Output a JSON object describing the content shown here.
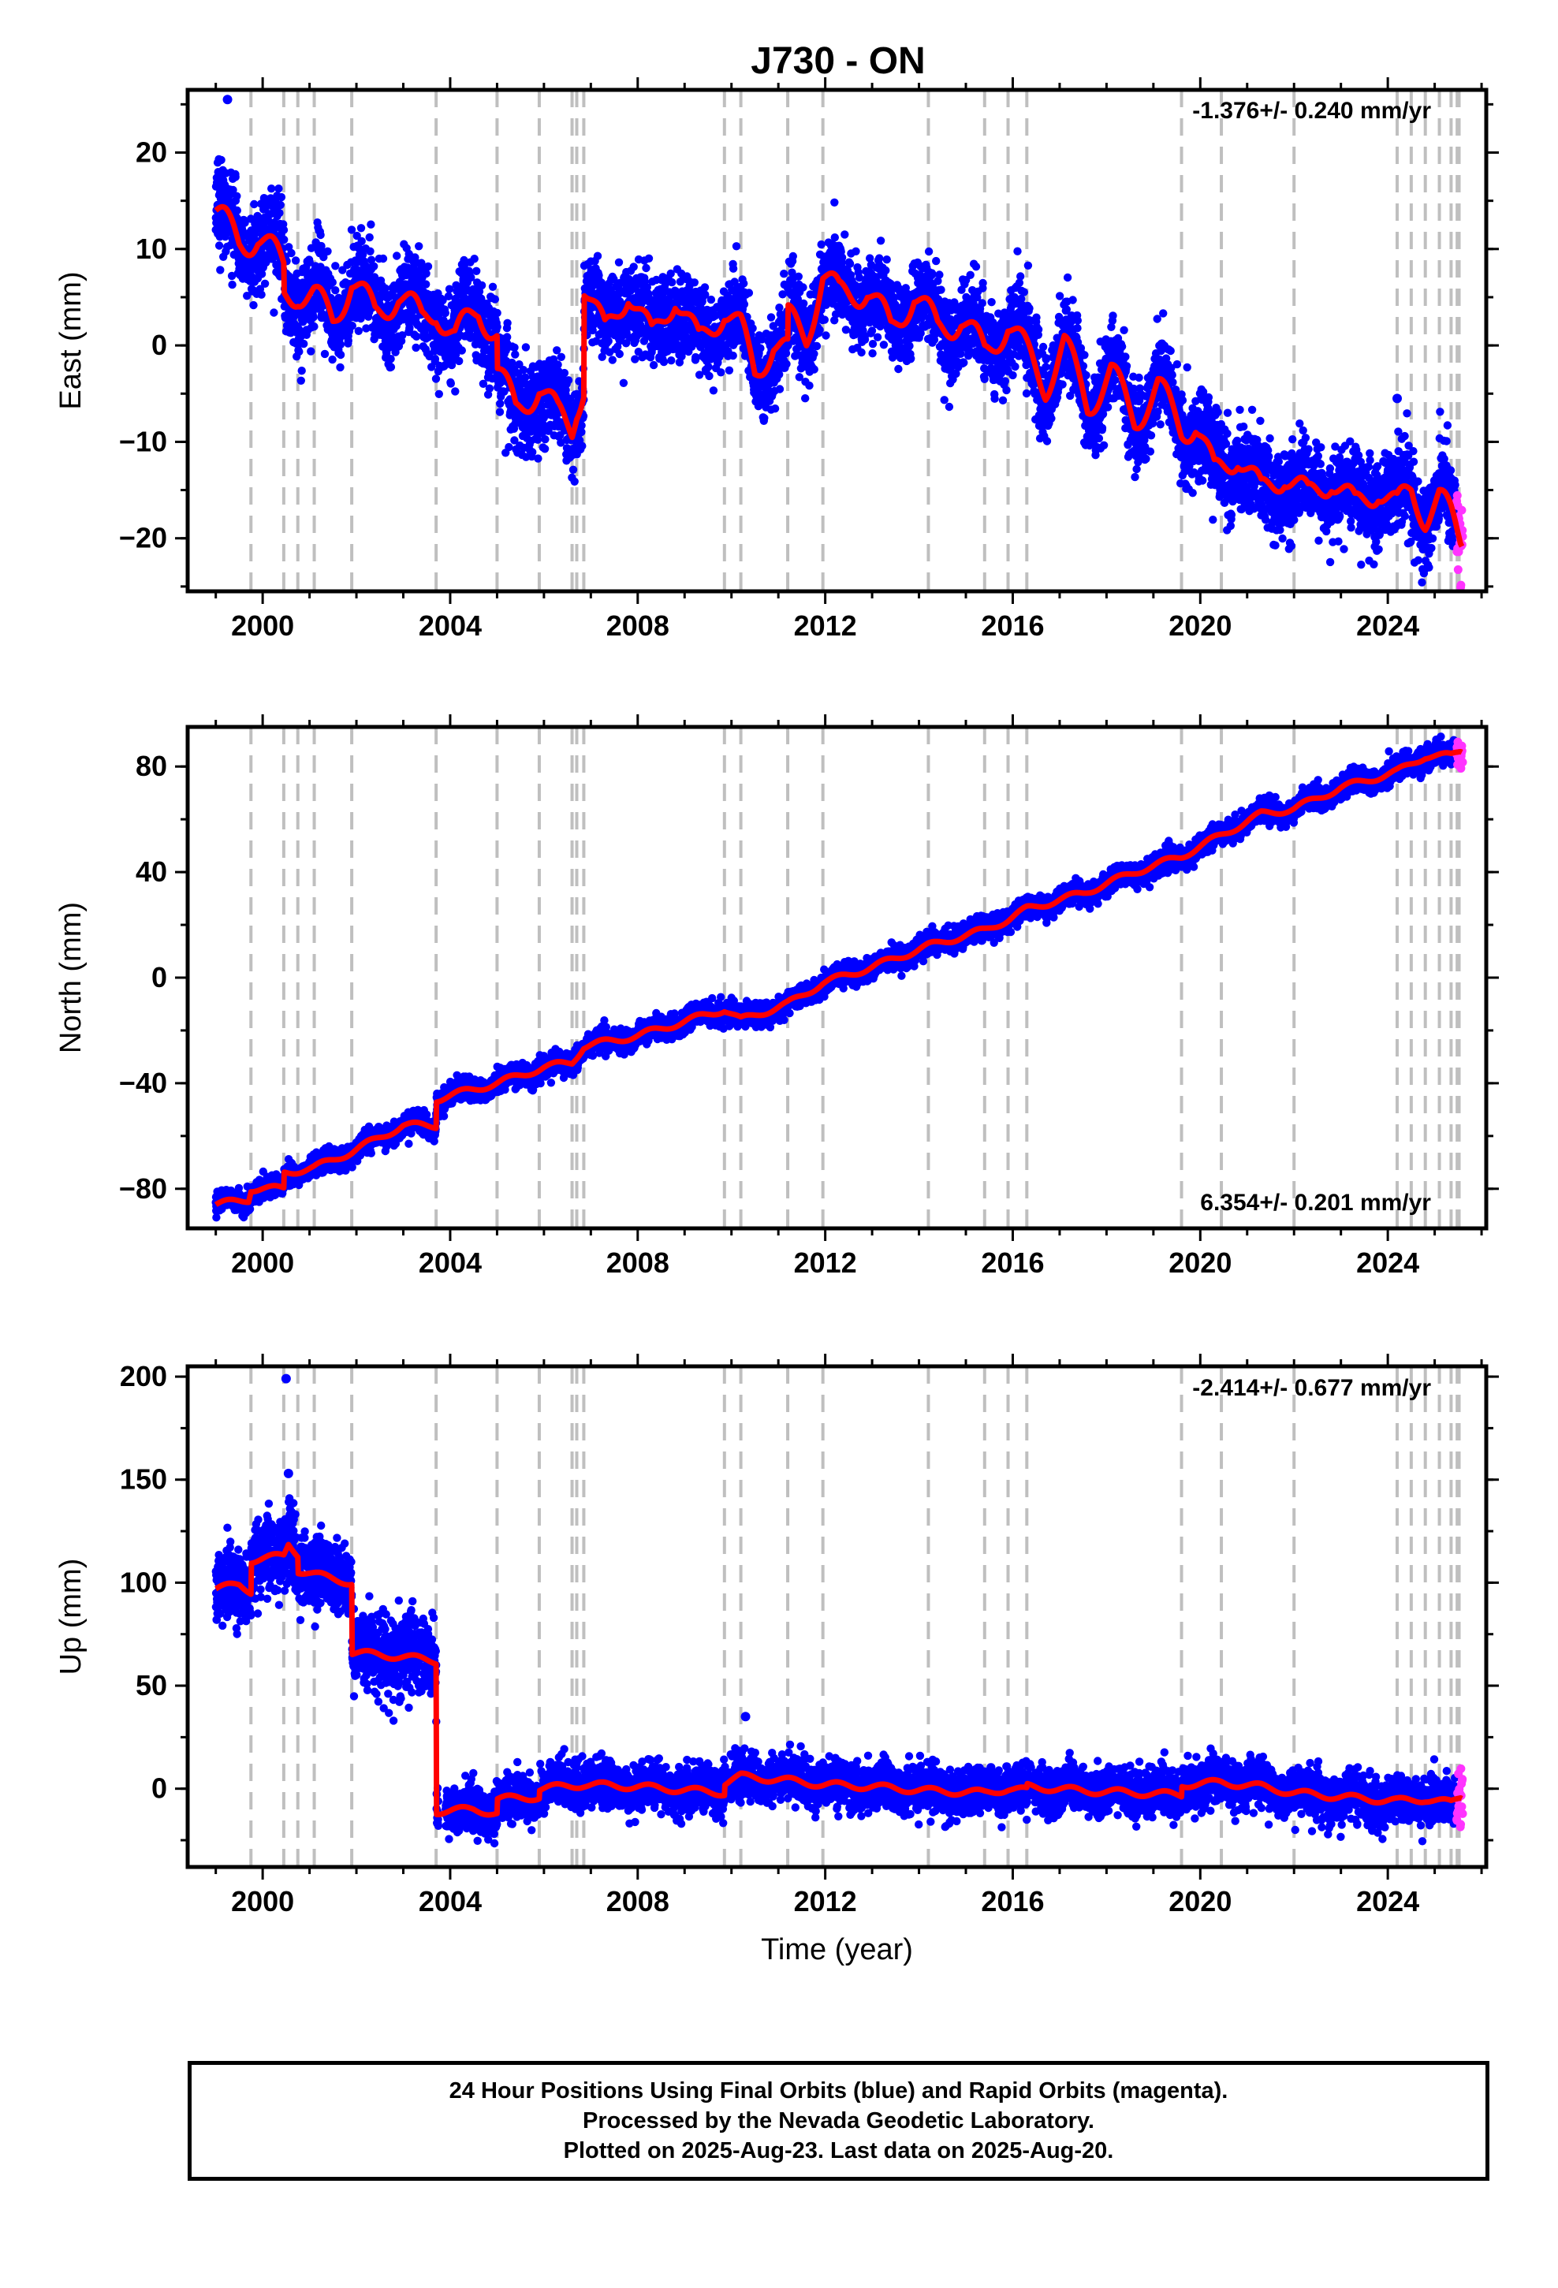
{
  "title": "J730 - ON",
  "footer": {
    "line1": "24 Hour Positions Using Final Orbits (blue) and Rapid Orbits (magenta).",
    "line2": "Processed by the Nevada Geodetic Laboratory.",
    "line3": "Plotted on 2025-Aug-23. Last data on 2025-Aug-20."
  },
  "colors": {
    "final_orbits": "#0000ff",
    "rapid_orbits": "#ff33ff",
    "model": "#ff0000",
    "event_lines": "#bfbfbf"
  },
  "chart_data": [
    {
      "type": "scatter",
      "ylabel": "East (mm)",
      "xlabel": "",
      "rate": "-1.376+/- 0.240 mm/yr",
      "xlim": [
        1998.4,
        2026.1
      ],
      "ylim": [
        -25.5,
        26.5
      ],
      "xticks": [
        "2000",
        "2004",
        "2008",
        "2012",
        "2016",
        "2020",
        "2024"
      ],
      "yticks": [
        "20",
        "10",
        "0",
        "−10",
        "−20"
      ],
      "ytick_values": [
        20,
        10,
        0,
        -10,
        -20
      ],
      "event_lines": [
        1999.75,
        2000.45,
        2000.75,
        2001.1,
        2001.9,
        2003.7,
        2005.0,
        2005.9,
        2006.6,
        2006.7,
        2006.85,
        2009.85,
        2010.2,
        2011.2,
        2011.95,
        2014.2,
        2015.4,
        2015.9,
        2016.3,
        2019.6,
        2020.45,
        2022.0,
        2024.2,
        2024.5,
        2024.8,
        2025.1,
        2025.35,
        2025.48,
        2025.52
      ],
      "model": [
        [
          1999.0,
          14
        ],
        [
          1999.5,
          10.5
        ],
        [
          1999.9,
          11.5
        ],
        [
          2000.3,
          9
        ],
        [
          2000.45,
          8
        ],
        [
          2000.46,
          5
        ],
        [
          2000.75,
          5.8
        ],
        [
          2001.1,
          5
        ],
        [
          2001.5,
          2.5
        ],
        [
          2001.9,
          7
        ],
        [
          2002.4,
          3
        ],
        [
          2002.9,
          5.5
        ],
        [
          2003.4,
          2.5
        ],
        [
          2003.7,
          4
        ],
        [
          2004.1,
          0.5
        ],
        [
          2004.6,
          4
        ],
        [
          2005.0,
          1
        ],
        [
          2005.01,
          -2.5
        ],
        [
          2005.4,
          -7
        ],
        [
          2005.9,
          -4
        ],
        [
          2006.3,
          -7.5
        ],
        [
          2006.6,
          -8.5
        ],
        [
          2006.7,
          -6
        ],
        [
          2006.85,
          -4
        ],
        [
          2006.86,
          6.5
        ],
        [
          2007.3,
          1
        ],
        [
          2007.8,
          6
        ],
        [
          2008.3,
          0.5
        ],
        [
          2008.8,
          5.5
        ],
        [
          2009.3,
          0
        ],
        [
          2009.85,
          4
        ],
        [
          2010.2,
          1.5
        ],
        [
          2010.5,
          -3
        ],
        [
          2010.9,
          0.5
        ],
        [
          2011.2,
          -1
        ],
        [
          2011.21,
          2.5
        ],
        [
          2011.6,
          1
        ],
        [
          2011.95,
          7.5
        ],
        [
          2012.3,
          5
        ],
        [
          2012.9,
          6
        ],
        [
          2013.4,
          1.5
        ],
        [
          2013.9,
          5.5
        ],
        [
          2014.4,
          1.5
        ],
        [
          2014.9,
          3
        ],
        [
          2015.4,
          -1
        ],
        [
          2015.9,
          2.5
        ],
        [
          2016.3,
          -1
        ],
        [
          2016.7,
          -4
        ],
        [
          2017.1,
          0
        ],
        [
          2017.6,
          -6
        ],
        [
          2018.1,
          -3
        ],
        [
          2018.6,
          -7.5
        ],
        [
          2019.1,
          -4.5
        ],
        [
          2019.6,
          -8.5
        ],
        [
          2019.9,
          -8
        ],
        [
          2020.3,
          -13.5
        ],
        [
          2020.8,
          -11
        ],
        [
          2021.3,
          -15.5
        ],
        [
          2021.8,
          -13
        ],
        [
          2022.3,
          -16
        ],
        [
          2022.8,
          -13.5
        ],
        [
          2023.3,
          -17
        ],
        [
          2023.8,
          -14.5
        ],
        [
          2024.2,
          -17
        ],
        [
          2024.5,
          -15
        ],
        [
          2024.8,
          -17.5
        ],
        [
          2025.1,
          -16
        ],
        [
          2025.35,
          -18
        ],
        [
          2025.55,
          -20
        ]
      ],
      "seasonal_amplitude": 2.2,
      "scatter_sd": 2.2,
      "outliers": [
        [
          1999.25,
          25.5
        ],
        [
          2024.2,
          -5.5
        ]
      ]
    },
    {
      "type": "scatter",
      "ylabel": "North (mm)",
      "xlabel": "",
      "rate": "6.354+/- 0.201 mm/yr",
      "xlim": [
        1998.4,
        2026.1
      ],
      "ylim": [
        -95,
        95
      ],
      "xticks": [
        "2000",
        "2004",
        "2008",
        "2012",
        "2016",
        "2020",
        "2024"
      ],
      "yticks": [
        "80",
        "40",
        "0",
        "−40",
        "−80"
      ],
      "ytick_values": [
        80,
        40,
        0,
        -40,
        -80
      ],
      "event_lines": [
        1999.75,
        2000.45,
        2000.75,
        2001.1,
        2001.9,
        2003.7,
        2005.0,
        2005.9,
        2006.6,
        2006.7,
        2006.85,
        2009.85,
        2010.2,
        2011.2,
        2011.95,
        2014.2,
        2015.4,
        2015.9,
        2016.3,
        2019.6,
        2020.45,
        2022.0,
        2024.2,
        2024.5,
        2024.8,
        2025.1,
        2025.35,
        2025.48,
        2025.52
      ],
      "model": [
        [
          1999.0,
          -86
        ],
        [
          1999.7,
          -84
        ],
        [
          1999.75,
          -80
        ],
        [
          2000.45,
          -80
        ],
        [
          2000.46,
          -74
        ],
        [
          2001.1,
          -72
        ],
        [
          2001.9,
          -66
        ],
        [
          2003.0,
          -56
        ],
        [
          2003.7,
          -56
        ],
        [
          2003.71,
          -46
        ],
        [
          2005.0,
          -40
        ],
        [
          2006.0,
          -34
        ],
        [
          2006.6,
          -32
        ],
        [
          2006.85,
          -26
        ],
        [
          2008.0,
          -22
        ],
        [
          2009.85,
          -12
        ],
        [
          2010.2,
          -16
        ],
        [
          2011.2,
          -10
        ],
        [
          2011.95,
          -2
        ],
        [
          2013.0,
          4
        ],
        [
          2014.2,
          12
        ],
        [
          2015.4,
          18
        ],
        [
          2015.9,
          22
        ],
        [
          2016.3,
          26
        ],
        [
          2017.5,
          32
        ],
        [
          2018.6,
          40
        ],
        [
          2019.6,
          46
        ],
        [
          2020.45,
          54
        ],
        [
          2021.3,
          62
        ],
        [
          2022.0,
          64
        ],
        [
          2023.0,
          72
        ],
        [
          2024.2,
          78
        ],
        [
          2024.8,
          84
        ],
        [
          2025.35,
          84
        ],
        [
          2025.55,
          86
        ]
      ],
      "seasonal_amplitude": 1.5,
      "scatter_sd": 2.0,
      "outliers": []
    },
    {
      "type": "scatter",
      "ylabel": "Up (mm)",
      "xlabel": "Time (year)",
      "rate": "-2.414+/- 0.677 mm/yr",
      "xlim": [
        1998.4,
        2026.1
      ],
      "ylim": [
        -38,
        205
      ],
      "xticks": [
        "2000",
        "2004",
        "2008",
        "2012",
        "2016",
        "2020",
        "2024"
      ],
      "yticks": [
        "200",
        "150",
        "100",
        "50",
        "0"
      ],
      "ytick_values": [
        200,
        150,
        100,
        50,
        0
      ],
      "event_lines": [
        1999.75,
        2000.45,
        2000.75,
        2001.1,
        2001.9,
        2003.7,
        2005.0,
        2005.9,
        2006.6,
        2006.7,
        2006.85,
        2009.85,
        2010.2,
        2011.2,
        2011.95,
        2014.2,
        2015.4,
        2015.9,
        2016.3,
        2019.6,
        2020.45,
        2022.0,
        2024.2,
        2024.5,
        2024.8,
        2025.1,
        2025.35,
        2025.48,
        2025.52
      ],
      "model": [
        [
          1999.0,
          97
        ],
        [
          1999.5,
          99
        ],
        [
          1999.75,
          96
        ],
        [
          1999.76,
          111
        ],
        [
          2000.45,
          113
        ],
        [
          2000.55,
          119
        ],
        [
          2000.75,
          114
        ],
        [
          2000.76,
          106
        ],
        [
          2001.1,
          104
        ],
        [
          2001.9,
          100
        ],
        [
          2001.91,
          66
        ],
        [
          2002.5,
          65
        ],
        [
          2003.0,
          64
        ],
        [
          2003.7,
          62
        ],
        [
          2003.71,
          -11
        ],
        [
          2004.5,
          -10
        ],
        [
          2005.0,
          -12
        ],
        [
          2005.01,
          -5
        ],
        [
          2005.9,
          -4
        ],
        [
          2005.91,
          0
        ],
        [
          2006.85,
          2
        ],
        [
          2008.0,
          1
        ],
        [
          2009.85,
          -2
        ],
        [
          2009.86,
          3
        ],
        [
          2010.2,
          6
        ],
        [
          2011.2,
          4
        ],
        [
          2011.95,
          2
        ],
        [
          2013.0,
          1
        ],
        [
          2014.2,
          -1
        ],
        [
          2015.4,
          -2
        ],
        [
          2015.9,
          0
        ],
        [
          2016.3,
          -1
        ],
        [
          2016.31,
          1
        ],
        [
          2017.5,
          -1
        ],
        [
          2018.6,
          -2
        ],
        [
          2019.6,
          -3
        ],
        [
          2019.61,
          2
        ],
        [
          2020.45,
          3
        ],
        [
          2021.3,
          1
        ],
        [
          2022.0,
          -2
        ],
        [
          2023.0,
          -4
        ],
        [
          2024.2,
          -6
        ],
        [
          2024.8,
          -5
        ],
        [
          2025.35,
          -7
        ],
        [
          2025.55,
          -4
        ]
      ],
      "seasonal_amplitude": 2.0,
      "scatter_sd": 5.5,
      "early_scatter_sd": 9,
      "outliers": [
        [
          2000.5,
          199
        ],
        [
          2010.3,
          35
        ],
        [
          2000.55,
          153
        ]
      ]
    }
  ]
}
